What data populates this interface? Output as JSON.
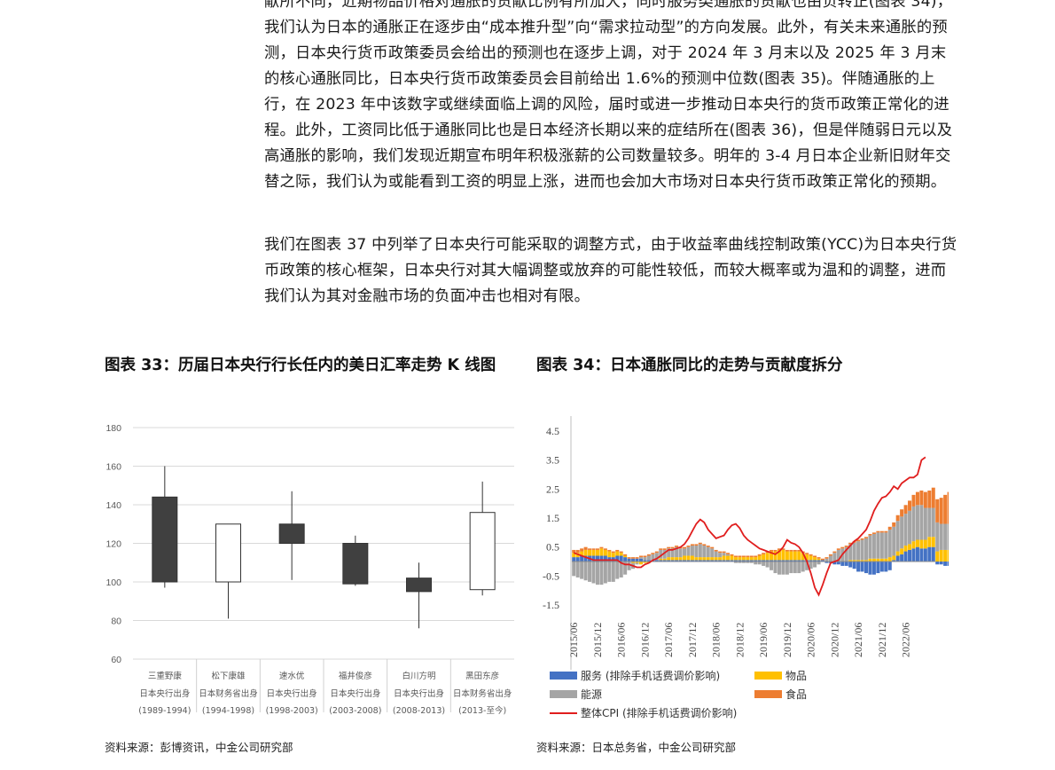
{
  "body": {
    "paragraph_1": "献所不同，近期物品价格对通胀的贡献比例有所加大，同时服务类通胀的贡献也由负转正(图表 34)，我们认为日本的通胀正在逐步由“成本推升型”向“需求拉动型”的方向发展。此外，有关未来通胀的预测，日本央行货币政策委员会给出的预测也在逐步上调，对于 2024 年 3 月末以及 2025 年 3 月末的核心通胀同比，日本央行货币政策委员会目前给出 1.6%的预测中位数(图表 35)。伴随通胀的上行，在 2023 年中该数字或继续面临上调的风险，届时或进一步推动日本央行的货币政策正常化的进程。此外，工资同比低于通胀同比也是日本经济长期以来的症结所在(图表 36)，但是伴随弱日元以及高通胀的影响，我们发现近期宣布明年积极涨薪的公司数量较多。明年的 3-4 月日本企业新旧财年交替之际，我们认为或能看到工资的明显上涨，进而也会加大市场对日本央行货币政策正常化的预期。",
    "paragraph_2": "我们在图表 37 中列举了日本央行可能采取的调整方式，由于收益率曲线控制政策(YCC)为日本央行货币政策的核心框架，日本央行对其大幅调整或放弃的可能性较低，而较大概率或为温和的调整，进而我们认为其对金融市场的负面冲击也相对有限。"
  },
  "figure33": {
    "title": "图表 33：历届日本央行行长任内的美日汇率走势 K 线图",
    "source": "资料来源：彭博资讯，中金公司研究部"
  },
  "figure34": {
    "title": "图表 34：日本通胀同比的走势与贡献度拆分",
    "source": "资料来源：日本总务省，中金公司研究部"
  },
  "chart_data": [
    {
      "type": "candlestick",
      "y_ticks": [
        "180",
        "160",
        "140",
        "120",
        "100",
        "80",
        "60"
      ],
      "ylim": [
        60,
        180
      ],
      "grid": true,
      "categories": [
        {
          "name": "三重野康",
          "origin": "日本央行出身",
          "period": "(1989-1994)",
          "open": 144,
          "close": 100,
          "high": 160,
          "low": 97
        },
        {
          "name": "松下康雄",
          "origin": "日本财务省出身",
          "period": "(1994-1998)",
          "open": 100,
          "close": 130,
          "high": 130,
          "low": 81
        },
        {
          "name": "速水优",
          "origin": "日本央行出身",
          "period": "(1998-2003)",
          "open": 130,
          "close": 120,
          "high": 147,
          "low": 101
        },
        {
          "name": "福井俊彦",
          "origin": "日本央行出身",
          "period": "(2003-2008)",
          "open": 120,
          "close": 99,
          "high": 124,
          "low": 98
        },
        {
          "name": "白川方明",
          "origin": "日本央行出身",
          "period": "(2008-2013)",
          "open": 102,
          "close": 95,
          "high": 110,
          "low": 76
        },
        {
          "name": "黑田东彦",
          "origin": "日本财务省出身",
          "period": "(2013-至今)",
          "open": 96,
          "close": 136,
          "high": 152,
          "low": 93
        }
      ],
      "colors": {
        "down": "#404040",
        "up": "#ffffff"
      }
    },
    {
      "type": "stacked-bar-line",
      "y_ticks": [
        "4.5",
        "3.5",
        "2.5",
        "1.5",
        "0.5",
        "-0.5",
        "-1.5"
      ],
      "ylim": [
        -1.5,
        4.5
      ],
      "x_ticks": [
        "2015/06",
        "2015/12",
        "2016/06",
        "2016/12",
        "2017/06",
        "2017/12",
        "2018/06",
        "2018/12",
        "2019/06",
        "2019/12",
        "2020/06",
        "2020/12",
        "2021/06",
        "2021/12",
        "2022/06"
      ],
      "x_start": "2015/06",
      "x_end": "2023/01",
      "series": [
        {
          "name": "服务 (排除手机话费调价影响)",
          "color": "#4472c4",
          "values": [
            0.15,
            0.15,
            0.2,
            0.2,
            0.2,
            0.2,
            0.2,
            0.2,
            0.2,
            0.15,
            0.15,
            0.2,
            0.2,
            0.15,
            0.1,
            0.1,
            0.1,
            0.1,
            0.05,
            0.05,
            0.05,
            0.05,
            0.05,
            0.05,
            0.05,
            0.05,
            0.05,
            0.05,
            0.05,
            0.05,
            0.05,
            0.05,
            0.05,
            0.05,
            0.05,
            0.05,
            0.05,
            0.05,
            0.05,
            0.05,
            0.05,
            0.05,
            0.05,
            0.05,
            0.05,
            0.05,
            0.05,
            0.05,
            0.05,
            0.05,
            0.05,
            0.05,
            0.05,
            0.05,
            0.05,
            0.05,
            0.05,
            0.05,
            0.05,
            0.05,
            0.05,
            0.05,
            0.05,
            0.05,
            -0.05,
            -0.05,
            -0.1,
            -0.1,
            -0.15,
            -0.15,
            -0.2,
            -0.25,
            -0.35,
            -0.35,
            -0.4,
            -0.45,
            -0.45,
            -0.4,
            -0.35,
            -0.35,
            -0.3,
            0.05,
            0.2,
            0.25,
            0.35,
            0.4,
            0.45,
            0.5,
            0.45,
            0.45,
            0.5,
            0.5,
            -0.1,
            -0.1,
            -0.15,
            -0.15,
            -0.15,
            -0.15,
            0.1,
            0.1
          ]
        },
        {
          "name": "物品",
          "color": "#ffc000",
          "values": [
            0.15,
            0.15,
            0.15,
            0.2,
            0.2,
            0.2,
            0.2,
            0.25,
            0.2,
            0.2,
            0.15,
            0.15,
            0.1,
            0.05,
            0.0,
            -0.05,
            -0.05,
            -0.1,
            -0.05,
            -0.05,
            0.0,
            0.0,
            0.05,
            0.05,
            0.1,
            0.1,
            0.1,
            0.1,
            0.15,
            0.15,
            0.15,
            0.1,
            0.1,
            0.1,
            0.1,
            0.1,
            0.1,
            0.1,
            0.15,
            0.15,
            0.15,
            0.1,
            0.1,
            0.1,
            0.1,
            0.1,
            0.1,
            0.15,
            0.2,
            0.25,
            0.3,
            0.3,
            0.35,
            0.35,
            0.3,
            0.3,
            0.3,
            0.3,
            0.25,
            0.2,
            0.15,
            0.1,
            0.05,
            0.0,
            0.0,
            0.0,
            0.0,
            0.0,
            0.0,
            0.0,
            0.05,
            0.05,
            0.05,
            0.05,
            0.05,
            0.1,
            0.1,
            0.1,
            0.1,
            0.1,
            0.15,
            0.15,
            0.15,
            0.2,
            0.2,
            0.2,
            0.25,
            0.25,
            0.3,
            0.3,
            0.35,
            0.35,
            0.35,
            0.4,
            0.4,
            0.4,
            0.45,
            0.5,
            0.6,
            0.7
          ]
        },
        {
          "name": "能源",
          "color": "#a5a5a5",
          "values": [
            -0.5,
            -0.55,
            -0.6,
            -0.65,
            -0.7,
            -0.75,
            -0.8,
            -0.8,
            -0.75,
            -0.7,
            -0.7,
            -0.6,
            -0.55,
            -0.45,
            -0.3,
            -0.2,
            -0.05,
            0.05,
            0.1,
            0.15,
            0.2,
            0.25,
            0.3,
            0.3,
            0.3,
            0.3,
            0.35,
            0.3,
            0.25,
            0.3,
            0.35,
            0.4,
            0.45,
            0.4,
            0.35,
            0.3,
            0.2,
            0.15,
            0.1,
            0.05,
            0.0,
            -0.05,
            -0.05,
            -0.05,
            -0.05,
            -0.05,
            -0.1,
            -0.1,
            -0.15,
            -0.2,
            -0.3,
            -0.4,
            -0.45,
            -0.45,
            -0.45,
            -0.4,
            -0.4,
            -0.4,
            -0.35,
            -0.3,
            -0.25,
            -0.2,
            -0.1,
            0.0,
            0.1,
            0.2,
            0.3,
            0.4,
            0.45,
            0.5,
            0.55,
            0.6,
            0.65,
            0.7,
            0.75,
            0.8,
            0.85,
            0.9,
            0.9,
            0.9,
            0.95,
            1.0,
            1.05,
            1.1,
            1.1,
            1.15,
            1.2,
            1.2,
            1.2,
            1.1,
            1.0,
            1.0,
            1.0,
            0.9,
            0.9,
            0.9
          ]
        },
        {
          "name": "食品",
          "color": "#ed7d31",
          "values": [
            0.1,
            0.1,
            0.1,
            0.1,
            0.05,
            0.05,
            0.05,
            0.05,
            0.05,
            0.05,
            0.05,
            0.05,
            0.05,
            0.05,
            0.05,
            0.05,
            0.05,
            0.05,
            0.05,
            0.05,
            0.05,
            0.05,
            0.05,
            0.05,
            0.05,
            0.05,
            0.05,
            0.05,
            0.05,
            0.05,
            0.05,
            0.05,
            0.05,
            0.05,
            0.05,
            0.05,
            0.05,
            0.05,
            0.05,
            0.05,
            0.05,
            0.05,
            0.05,
            0.05,
            0.05,
            0.05,
            0.05,
            0.05,
            0.05,
            0.05,
            0.05,
            0.05,
            0.05,
            0.05,
            0.05,
            0.05,
            0.05,
            0.05,
            0.05,
            0.05,
            0.05,
            0.05,
            0.05,
            0.05,
            0.05,
            0.05,
            0.05,
            0.05,
            0.05,
            0.05,
            0.05,
            0.05,
            0.05,
            0.05,
            0.05,
            0.05,
            0.05,
            0.05,
            0.05,
            0.05,
            0.1,
            0.15,
            0.2,
            0.25,
            0.3,
            0.35,
            0.4,
            0.45,
            0.5,
            0.55,
            0.6,
            0.7,
            0.8,
            0.9,
            1.0,
            1.1
          ]
        },
        {
          "name": "整体CPI (排除手机话费调价影响)",
          "color": "#e01e1e",
          "type": "line",
          "values": [
            0.3,
            0.25,
            0.2,
            0.15,
            0.1,
            0.05,
            0.05,
            0.05,
            0.05,
            0.05,
            0.05,
            0.05,
            -0.05,
            -0.1,
            -0.1,
            -0.15,
            -0.2,
            -0.2,
            -0.1,
            -0.05,
            0.05,
            0.1,
            0.2,
            0.3,
            0.4,
            0.4,
            0.45,
            0.5,
            0.6,
            0.8,
            1.05,
            1.3,
            1.45,
            1.35,
            1.1,
            0.95,
            0.8,
            0.85,
            0.9,
            1.1,
            1.25,
            1.3,
            1.15,
            0.9,
            0.75,
            0.65,
            0.55,
            0.45,
            0.4,
            0.35,
            0.3,
            0.25,
            0.35,
            0.5,
            0.75,
            0.65,
            0.6,
            0.5,
            0.3,
            0.0,
            -0.4,
            -0.9,
            -1.15,
            -0.8,
            -0.4,
            -0.05,
            0.0,
            0.05,
            0.25,
            0.4,
            0.55,
            0.7,
            0.8,
            0.95,
            1.1,
            1.4,
            1.75,
            2.0,
            2.2,
            2.25,
            2.4,
            2.6,
            2.5,
            2.7,
            2.8,
            2.9,
            2.9,
            3.0,
            3.5,
            3.6
          ]
        }
      ]
    }
  ]
}
